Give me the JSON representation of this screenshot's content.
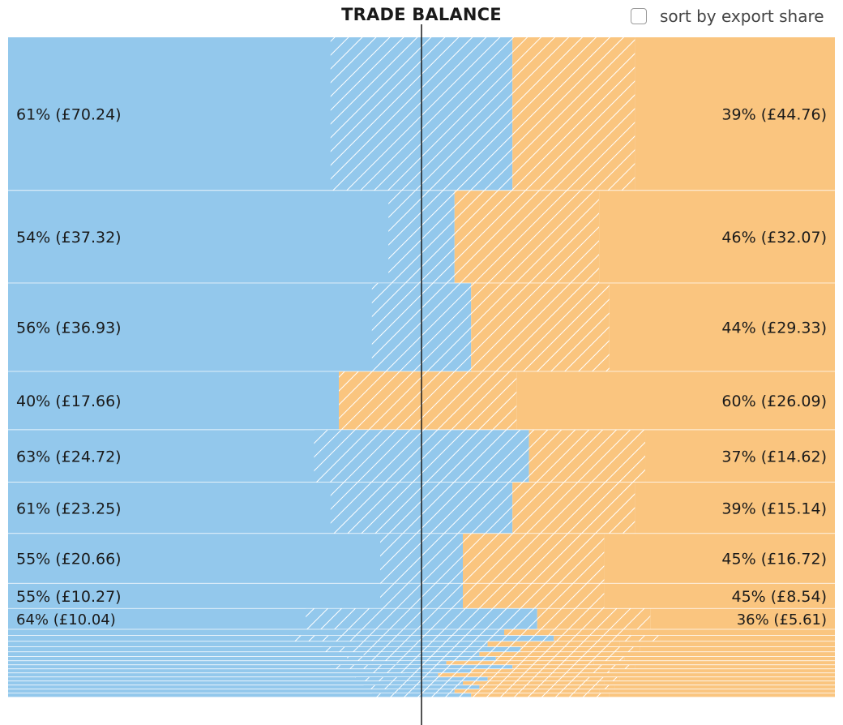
{
  "title": "TRADE BALANCE",
  "sort_control": {
    "label": "sort by export share",
    "checked": false
  },
  "colors": {
    "blue": "#93c8ec",
    "orange": "#fac57f",
    "hatch_line": "#ffffff",
    "divider": "#1a1a1a",
    "background": "#ffffff"
  },
  "chart_data": {
    "type": "bar",
    "layout": "marimekko-diverging",
    "series": [
      {
        "name": "",
        "color": "blue",
        "side": "left"
      },
      {
        "name": "",
        "color": "orange",
        "side": "right"
      }
    ],
    "rows": [
      {
        "left_label": "61% (£70.24)",
        "right_label": "39% (£44.76)",
        "left_pct": 61,
        "left_value": 70.24,
        "right_pct": 39,
        "right_value": 44.76
      },
      {
        "left_label": "54% (£37.32)",
        "right_label": "46% (£32.07)",
        "left_pct": 54,
        "left_value": 37.32,
        "right_pct": 46,
        "right_value": 32.07
      },
      {
        "left_label": "56% (£36.93)",
        "right_label": "44% (£29.33)",
        "left_pct": 56,
        "left_value": 36.93,
        "right_pct": 44,
        "right_value": 29.33
      },
      {
        "left_label": "40% (£17.66)",
        "right_label": "60% (£26.09)",
        "left_pct": 40,
        "left_value": 17.66,
        "right_pct": 60,
        "right_value": 26.09
      },
      {
        "left_label": "63% (£24.72)",
        "right_label": "37% (£14.62)",
        "left_pct": 63,
        "left_value": 24.72,
        "right_pct": 37,
        "right_value": 14.62
      },
      {
        "left_label": "61% (£23.25)",
        "right_label": "39% (£15.14)",
        "left_pct": 61,
        "left_value": 23.25,
        "right_pct": 39,
        "right_value": 15.14
      },
      {
        "left_label": "55% (£20.66)",
        "right_label": "45% (£16.72)",
        "left_pct": 55,
        "left_value": 20.66,
        "right_pct": 45,
        "right_value": 16.72
      },
      {
        "left_label": "55% (£10.27)",
        "right_label": "45% (£8.54)",
        "left_pct": 55,
        "left_value": 10.27,
        "right_pct": 45,
        "right_value": 8.54
      },
      {
        "left_label": "64% (£10.04)",
        "right_label": "36% (£5.61)",
        "left_pct": 64,
        "left_value": 10.04,
        "right_pct": 36,
        "right_value": 5.61
      }
    ],
    "unlabeled_rows_note": "",
    "unlabeled_rows": [
      {
        "left_pct": 60,
        "right_pct": 40,
        "total": 4.6
      },
      {
        "left_pct": 66,
        "right_pct": 34,
        "total": 4.4
      },
      {
        "left_pct": 58,
        "right_pct": 42,
        "total": 4.1
      },
      {
        "left_pct": 62,
        "right_pct": 38,
        "total": 3.8
      },
      {
        "left_pct": 57,
        "right_pct": 43,
        "total": 3.5
      },
      {
        "left_pct": 59,
        "right_pct": 41,
        "total": 3.2
      },
      {
        "left_pct": 53,
        "right_pct": 47,
        "total": 3.0
      },
      {
        "left_pct": 61,
        "right_pct": 39,
        "total": 2.8
      },
      {
        "left_pct": 56,
        "right_pct": 44,
        "total": 2.6
      },
      {
        "left_pct": 52,
        "right_pct": 48,
        "total": 2.4
      },
      {
        "left_pct": 58,
        "right_pct": 42,
        "total": 2.2
      },
      {
        "left_pct": 55,
        "right_pct": 45,
        "total": 2.0
      },
      {
        "left_pct": 57,
        "right_pct": 43,
        "total": 1.8
      },
      {
        "left_pct": 54,
        "right_pct": 46,
        "total": 1.6
      },
      {
        "left_pct": 56,
        "right_pct": 44,
        "total": 1.4
      }
    ]
  }
}
